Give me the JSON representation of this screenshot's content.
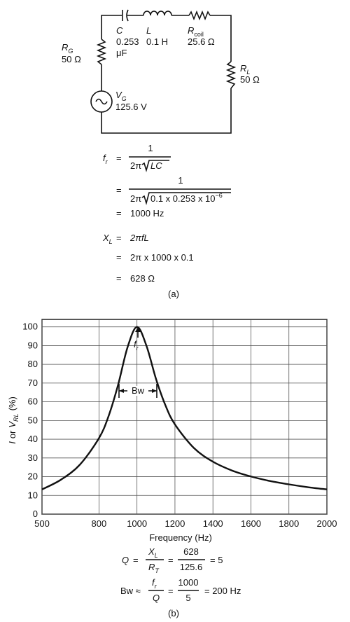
{
  "circuit": {
    "capacitor": {
      "symbol": "C",
      "value": "0.253",
      "unit": "μF"
    },
    "inductor": {
      "symbol": "L",
      "value": "0.1 H"
    },
    "coil_resistor": {
      "symbol": "R",
      "sub": "coil",
      "value": "25.6 Ω"
    },
    "generator_resistor": {
      "symbol": "R",
      "sub": "G",
      "value": "50 Ω"
    },
    "load_resistor": {
      "symbol": "R",
      "sub": "L",
      "value": "50 Ω"
    },
    "source": {
      "symbol": "V",
      "sub": "G",
      "value": "125.6 V"
    },
    "caption": "(a)"
  },
  "equations": {
    "resonance": {
      "symbol": "f",
      "sub": "r",
      "eq": "=",
      "numerator": "1",
      "den_factor": "2π",
      "den_radicand": "LC"
    },
    "substitution": {
      "eq": "=",
      "numerator": "1",
      "den_factor": "2π",
      "den_radicand": "0.1 x 0.253 x 10",
      "den_exponent": "−6"
    },
    "result": {
      "eq": "=",
      "value": "1000 Hz"
    },
    "reactance": {
      "symbol": "X",
      "sub": "L",
      "eq": "=",
      "formula": "2πfL"
    },
    "reactance_sub": {
      "eq": "=",
      "value": "2π x 1000 x 0.1"
    },
    "reactance_result": {
      "eq": "=",
      "value": "628 Ω"
    },
    "q": {
      "symbol": "Q",
      "eq1": "=",
      "num1": "X",
      "num1_sub": "L",
      "den1": "R",
      "den1_sub": "T",
      "eq2": "=",
      "num2": "628",
      "den2": "125.6",
      "result": "= 5"
    },
    "bw": {
      "lhs": "Bw ≈",
      "num1": "f",
      "num1_sub": "r",
      "den1": "Q",
      "eq": "=",
      "num2": "1000",
      "den2": "5",
      "result": "= 200 Hz"
    }
  },
  "chart_data": {
    "type": "line",
    "x": [
      500,
      600,
      700,
      800,
      850,
      900,
      950,
      1000,
      1050,
      1100,
      1150,
      1200,
      1300,
      1400,
      1500,
      1600,
      1700,
      1800,
      1900,
      2000
    ],
    "values": [
      13.2,
      18.4,
      26.5,
      40.6,
      52.2,
      68.8,
      89.0,
      100,
      89.9,
      72.3,
      58.1,
      47.9,
      35.3,
      28.0,
      23.3,
      20.1,
      17.7,
      15.9,
      14.4,
      13.2
    ],
    "color": "#111111",
    "xlabel": "Frequency (Hz)",
    "ylabel": {
      "i": "I",
      "or": "or",
      "v": "V",
      "sub": "RL",
      "unit": "(%)"
    },
    "xlim": [
      500,
      2000
    ],
    "ylim": [
      0,
      104
    ],
    "xticks": [
      500,
      800,
      1000,
      1200,
      1400,
      1600,
      1800,
      2000
    ],
    "yticks": [
      0,
      10,
      20,
      30,
      40,
      50,
      60,
      70,
      80,
      90,
      100
    ],
    "grid": true,
    "annotations": {
      "peak": {
        "symbol": "f",
        "sub": "r"
      },
      "bandwidth": "Bw"
    },
    "caption": "(b)"
  }
}
